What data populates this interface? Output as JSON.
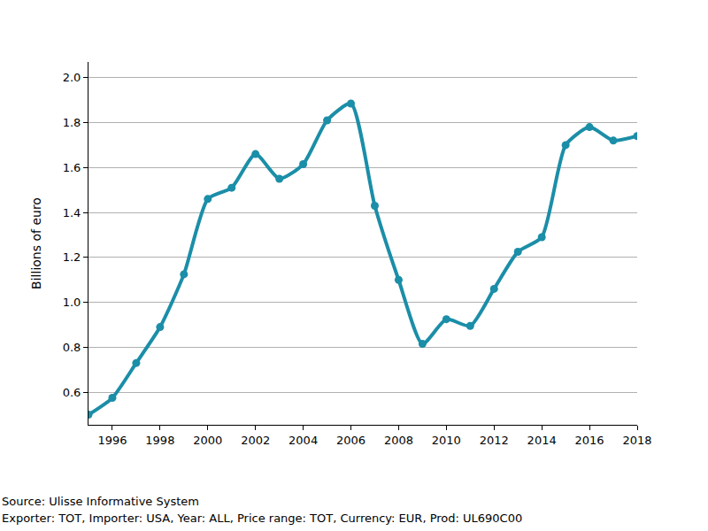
{
  "chart_data": {
    "type": "line",
    "y_label": "Billions of euro",
    "x": [
      1995,
      1996,
      1997,
      1998,
      1999,
      2000,
      2001,
      2002,
      2003,
      2004,
      2005,
      2006,
      2007,
      2008,
      2009,
      2010,
      2011,
      2012,
      2013,
      2014,
      2015,
      2016,
      2017,
      2018
    ],
    "values": [
      0.5,
      0.575,
      0.73,
      0.89,
      1.125,
      1.46,
      1.51,
      1.66,
      1.55,
      1.615,
      1.81,
      1.885,
      1.43,
      1.1,
      0.815,
      0.925,
      0.895,
      1.06,
      1.225,
      1.29,
      1.7,
      1.78,
      1.72,
      1.74
    ],
    "color": "#1b8ea8",
    "marker": "circle",
    "line_style": "solid",
    "xlim": [
      1995,
      2018
    ],
    "xticks": [
      1996,
      1998,
      2000,
      2002,
      2004,
      2006,
      2008,
      2010,
      2012,
      2014,
      2016,
      2018
    ],
    "ylim": [
      0.455,
      2.07
    ],
    "yticks": [
      0.6,
      0.8,
      {
        "value": 1,
        "label": "1.0"
      },
      1.2,
      1.4,
      1.6,
      1.8,
      {
        "value": 2,
        "label": "2.0"
      }
    ],
    "grid": true,
    "annotations": [
      "Source: Ulisse Informative System",
      "Exporter: TOT, Importer: USA, Year: ALL, Price range: TOT, Currency: EUR, Prod: UL690C00"
    ]
  }
}
